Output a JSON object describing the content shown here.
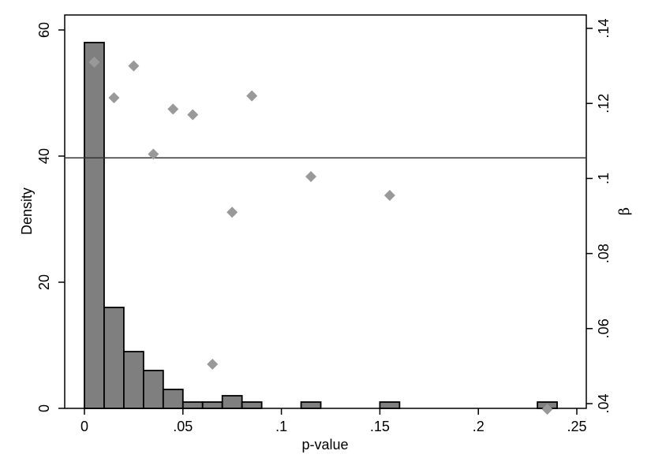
{
  "chart_data": {
    "type": "bar",
    "subtype": "histogram with scatter overlay and reference line",
    "xlabel": "p-value",
    "ylabel_left": "Density",
    "ylabel_right": "β",
    "xlim": [
      0,
      0.25
    ],
    "ylim_left": [
      0,
      60
    ],
    "ylim_right": [
      0.04,
      0.14
    ],
    "x_ticks": [
      {
        "value": 0,
        "label": "0"
      },
      {
        "value": 0.05,
        "label": ".05"
      },
      {
        "value": 0.1,
        "label": ".1"
      },
      {
        "value": 0.15,
        "label": ".15"
      },
      {
        "value": 0.2,
        "label": ".2"
      },
      {
        "value": 0.25,
        "label": ".25"
      }
    ],
    "y_left_ticks": [
      {
        "value": 0,
        "label": "0"
      },
      {
        "value": 20,
        "label": "20"
      },
      {
        "value": 40,
        "label": "40"
      },
      {
        "value": 60,
        "label": "60"
      }
    ],
    "y_right_ticks": [
      {
        "value": 0.04,
        "label": ".04"
      },
      {
        "value": 0.06,
        "label": ".06"
      },
      {
        "value": 0.08,
        "label": ".08"
      },
      {
        "value": 0.1,
        "label": ".1"
      },
      {
        "value": 0.12,
        "label": ".12"
      },
      {
        "value": 0.14,
        "label": ".14"
      }
    ],
    "histogram": {
      "bin_width": 0.01,
      "bins": [
        {
          "start": 0.0,
          "density": 58
        },
        {
          "start": 0.01,
          "density": 16
        },
        {
          "start": 0.02,
          "density": 9
        },
        {
          "start": 0.03,
          "density": 6
        },
        {
          "start": 0.04,
          "density": 3
        },
        {
          "start": 0.05,
          "density": 1
        },
        {
          "start": 0.06,
          "density": 1
        },
        {
          "start": 0.07,
          "density": 2
        },
        {
          "start": 0.08,
          "density": 1
        },
        {
          "start": 0.11,
          "density": 1
        },
        {
          "start": 0.15,
          "density": 1
        },
        {
          "start": 0.23,
          "density": 1
        }
      ]
    },
    "scatter_beta": [
      {
        "x": 0.005,
        "y": 0.131
      },
      {
        "x": 0.015,
        "y": 0.1215
      },
      {
        "x": 0.025,
        "y": 0.13
      },
      {
        "x": 0.035,
        "y": 0.1065
      },
      {
        "x": 0.045,
        "y": 0.1185
      },
      {
        "x": 0.055,
        "y": 0.117
      },
      {
        "x": 0.065,
        "y": 0.0505
      },
      {
        "x": 0.075,
        "y": 0.091
      },
      {
        "x": 0.085,
        "y": 0.122
      },
      {
        "x": 0.115,
        "y": 0.1005
      },
      {
        "x": 0.155,
        "y": 0.0955
      },
      {
        "x": 0.235,
        "y": 0.0385
      }
    ],
    "reference_line": {
      "axis": "right",
      "value": 0.1055
    },
    "colors": {
      "bar_fill": "#7f7f7f",
      "bar_stroke": "#000000",
      "marker": "#999999",
      "line": "#333333"
    },
    "grid": false,
    "legend": false
  }
}
